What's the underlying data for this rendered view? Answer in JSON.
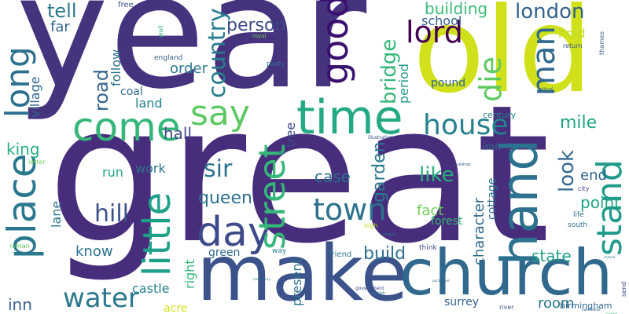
{
  "words": [
    {
      "id": "year",
      "text": "year",
      "color": "#46337e",
      "vertical": false
    },
    {
      "id": "great",
      "text": "great",
      "color": "#472d7b",
      "vertical": false
    },
    {
      "id": "old",
      "text": "old",
      "color": "#d0e11c",
      "vertical": false
    },
    {
      "id": "make",
      "text": "make",
      "color": "#3b528b",
      "vertical": false
    },
    {
      "id": "church",
      "text": "church",
      "color": "#31688e",
      "vertical": false
    },
    {
      "id": "place",
      "text": "place",
      "color": "#2a788e",
      "vertical": true
    },
    {
      "id": "come",
      "text": "come",
      "color": "#35b779",
      "vertical": false
    },
    {
      "id": "time",
      "text": "time",
      "color": "#23a983",
      "vertical": false
    },
    {
      "id": "hand",
      "text": "hand",
      "color": "#2c728e",
      "vertical": true
    },
    {
      "id": "day",
      "text": "day",
      "color": "#3e4a89",
      "vertical": false
    },
    {
      "id": "say",
      "text": "say",
      "color": "#5ec962",
      "vertical": false
    },
    {
      "id": "house",
      "text": "house",
      "color": "#26828e",
      "vertical": false
    },
    {
      "id": "little",
      "text": "little",
      "color": "#1fa088",
      "vertical": true
    },
    {
      "id": "street",
      "text": "street",
      "color": "#35b779",
      "vertical": true
    },
    {
      "id": "stand",
      "text": "stand",
      "color": "#1f9a8a",
      "vertical": true
    },
    {
      "id": "long",
      "text": "long",
      "color": "#2c728e",
      "vertical": true
    },
    {
      "id": "good",
      "text": "good",
      "color": "#3b0f70",
      "vertical": true
    },
    {
      "id": "lord",
      "text": "lord",
      "color": "#440154",
      "vertical": false
    },
    {
      "id": "die",
      "text": "die",
      "color": "#5ec962",
      "vertical": true
    },
    {
      "id": "man",
      "text": "man",
      "color": "#31688e",
      "vertical": true
    },
    {
      "id": "town",
      "text": "town",
      "color": "#2c728e",
      "vertical": false
    },
    {
      "id": "water",
      "text": "water",
      "color": "#2a788e",
      "vertical": false
    },
    {
      "id": "country",
      "text": "country",
      "color": "#287d8e",
      "vertical": true
    },
    {
      "id": "london",
      "text": "london",
      "color": "#33638d",
      "vertical": false
    },
    {
      "id": "bridge",
      "text": "bridge",
      "color": "#35b779",
      "vertical": true
    },
    {
      "id": "road",
      "text": "road",
      "color": "#33638d",
      "vertical": true
    },
    {
      "id": "person",
      "text": "person",
      "color": "#3e4a89",
      "vertical": false
    },
    {
      "id": "tell",
      "text": "tell",
      "color": "#2a788e",
      "vertical": false
    },
    {
      "id": "far",
      "text": "far",
      "color": "#33638d",
      "vertical": false
    },
    {
      "id": "building",
      "text": "building",
      "color": "#3aba76",
      "vertical": false
    },
    {
      "id": "school",
      "text": "school",
      "color": "#35608d",
      "vertical": false
    },
    {
      "id": "hill",
      "text": "hill",
      "color": "#3b528b",
      "vertical": false
    },
    {
      "id": "mile",
      "text": "mile",
      "color": "#20a486",
      "vertical": false
    },
    {
      "id": "sir",
      "text": "sir",
      "color": "#2c728e",
      "vertical": false
    },
    {
      "id": "queen",
      "text": "queen",
      "color": "#2c728e",
      "vertical": false
    },
    {
      "id": "king",
      "text": "king",
      "color": "#29af7f",
      "vertical": false
    },
    {
      "id": "garden",
      "text": "garden",
      "color": "#2a788e",
      "vertical": true
    },
    {
      "id": "look",
      "text": "look",
      "color": "#31688e",
      "vertical": true
    },
    {
      "id": "like",
      "text": "like",
      "color": "#29af7f",
      "vertical": false
    },
    {
      "id": "case",
      "text": "case",
      "color": "#2c728e",
      "vertical": false
    },
    {
      "id": "end",
      "text": "end",
      "color": "#32658e",
      "vertical": false
    },
    {
      "id": "point",
      "text": "point",
      "color": "#20a486",
      "vertical": false
    },
    {
      "id": "build",
      "text": "build",
      "color": "#2c728e",
      "vertical": false
    },
    {
      "id": "state",
      "text": "state",
      "color": "#1fa088",
      "vertical": false
    },
    {
      "id": "fact",
      "text": "fact",
      "color": "#6ece58",
      "vertical": false
    },
    {
      "id": "character",
      "text": "character",
      "color": "#31688e",
      "vertical": true
    },
    {
      "id": "cottage",
      "text": "cottage",
      "color": "#2c728e",
      "vertical": true
    },
    {
      "id": "forest",
      "text": "forest",
      "color": "#35b779",
      "vertical": false
    },
    {
      "id": "follow",
      "text": "follow",
      "color": "#2c728e",
      "vertical": true
    },
    {
      "id": "village",
      "text": "village",
      "color": "#32658e",
      "vertical": true
    },
    {
      "id": "coal",
      "text": "coal",
      "color": "#31688e",
      "vertical": false
    },
    {
      "id": "land",
      "text": "land",
      "color": "#26828e",
      "vertical": false
    },
    {
      "id": "hall",
      "text": "hall",
      "color": "#3e4a89",
      "vertical": false
    },
    {
      "id": "order",
      "text": "order",
      "color": "#2a788e",
      "vertical": false
    },
    {
      "id": "pound",
      "text": "pound",
      "color": "#32658e",
      "vertical": false
    },
    {
      "id": "period",
      "text": "period",
      "color": "#1f988b",
      "vertical": true
    },
    {
      "id": "hold",
      "text": "hold",
      "color": "#bddf26",
      "vertical": false
    },
    {
      "id": "century",
      "text": "century",
      "color": "#26828e",
      "vertical": false
    },
    {
      "id": "iron",
      "text": "iron",
      "color": "#2c728e",
      "vertical": false
    },
    {
      "id": "tree",
      "text": "tree",
      "color": "#3e4a89",
      "vertical": true
    },
    {
      "id": "run",
      "text": "run",
      "color": "#20a486",
      "vertical": false
    },
    {
      "id": "work",
      "text": "work",
      "color": "#2c728e",
      "vertical": false
    },
    {
      "id": "lane",
      "text": "lane",
      "color": "#2a788e",
      "vertical": true
    },
    {
      "id": "know",
      "text": "know",
      "color": "#2c728e",
      "vertical": false
    },
    {
      "id": "right",
      "text": "right",
      "color": "#35b779",
      "vertical": true
    },
    {
      "id": "green",
      "text": "green",
      "color": "#31688e",
      "vertical": false
    },
    {
      "id": "present",
      "text": "present",
      "color": "#2c728e",
      "vertical": true
    },
    {
      "id": "castle",
      "text": "castle",
      "color": "#26828e",
      "vertical": false
    },
    {
      "id": "acre",
      "text": "acre",
      "color": "#d8e219",
      "vertical": false
    },
    {
      "id": "inn",
      "text": "inn",
      "color": "#35608d",
      "vertical": false
    },
    {
      "id": "room",
      "text": "room",
      "color": "#2c728e",
      "vertical": false
    },
    {
      "id": "surrey",
      "text": "surrey",
      "color": "#33638d",
      "vertical": false
    },
    {
      "id": "birmingham",
      "text": "birmingham",
      "color": "#31688e",
      "vertical": false
    },
    {
      "id": "england",
      "text": "england",
      "color": "#35608d",
      "vertical": false
    },
    {
      "id": "party",
      "text": "party",
      "color": "#2c728e",
      "vertical": false
    },
    {
      "id": "free",
      "text": "free",
      "color": "#3b528b",
      "vertical": false
    },
    {
      "id": "friend",
      "text": "friend",
      "color": "#2a788e",
      "vertical": false
    },
    {
      "id": "think",
      "text": "think",
      "color": "#3e4a89",
      "vertical": false
    },
    {
      "id": "way",
      "text": "way",
      "color": "#2a788e",
      "vertical": false
    },
    {
      "id": "high",
      "text": "high",
      "color": "#bddf26",
      "vertical": false
    },
    {
      "id": "roman",
      "text": "roman",
      "color": "#5ec962",
      "vertical": false
    },
    {
      "id": "letter",
      "text": "letter",
      "color": "#6ece58",
      "vertical": false
    },
    {
      "id": "south",
      "text": "south",
      "color": "#2c728e",
      "vertical": false
    },
    {
      "id": "life",
      "text": "life",
      "color": "#31688e",
      "vertical": false
    },
    {
      "id": "city",
      "text": "city",
      "color": "#3e4a89",
      "vertical": false
    },
    {
      "id": "return",
      "text": "return",
      "color": "#3b528b",
      "vertical": false
    },
    {
      "id": "thames",
      "text": "thames",
      "color": "#35608d",
      "vertical": true
    },
    {
      "id": "royal",
      "text": "royal",
      "color": "#6ece58",
      "vertical": false
    },
    {
      "id": "wall",
      "text": "wall",
      "color": "#35b779",
      "vertical": true
    },
    {
      "id": "send",
      "text": "send",
      "color": "#3e4a89",
      "vertical": true
    },
    {
      "id": "river",
      "text": "river",
      "color": "#3b528b",
      "vertical": false
    },
    {
      "id": "government",
      "text": "government",
      "color": "#3e4a89",
      "vertical": false
    },
    {
      "id": "english",
      "text": "english",
      "color": "#2c728e",
      "vertical": false
    },
    {
      "id": "chapel",
      "text": "chapel",
      "color": "#2a788e",
      "vertical": false
    },
    {
      "id": "illustration",
      "text": "illustration",
      "color": "#3e4a89",
      "vertical": false
    },
    {
      "id": "cathedral",
      "text": "cathedral",
      "color": "#31688e",
      "vertical": false
    },
    {
      "id": "bishop",
      "text": "bishop",
      "color": "#3b528b",
      "vertical": false
    },
    {
      "id": "political",
      "text": "political",
      "color": "#33638d",
      "vertical": false
    },
    {
      "id": "canterbury",
      "text": "canterbury",
      "color": "#2a788e",
      "vertical": false
    },
    {
      "id": "parliament",
      "text": "parliament",
      "color": "#32658e",
      "vertical": false
    },
    {
      "id": "nursery",
      "text": "nursery",
      "color": "#35b779",
      "vertical": false
    },
    {
      "id": "tiny1",
      "text": "ceased",
      "color": "#2c728e",
      "vertical": false
    },
    {
      "id": "tiny2",
      "text": "canal",
      "color": "#31688e",
      "vertical": false
    }
  ]
}
